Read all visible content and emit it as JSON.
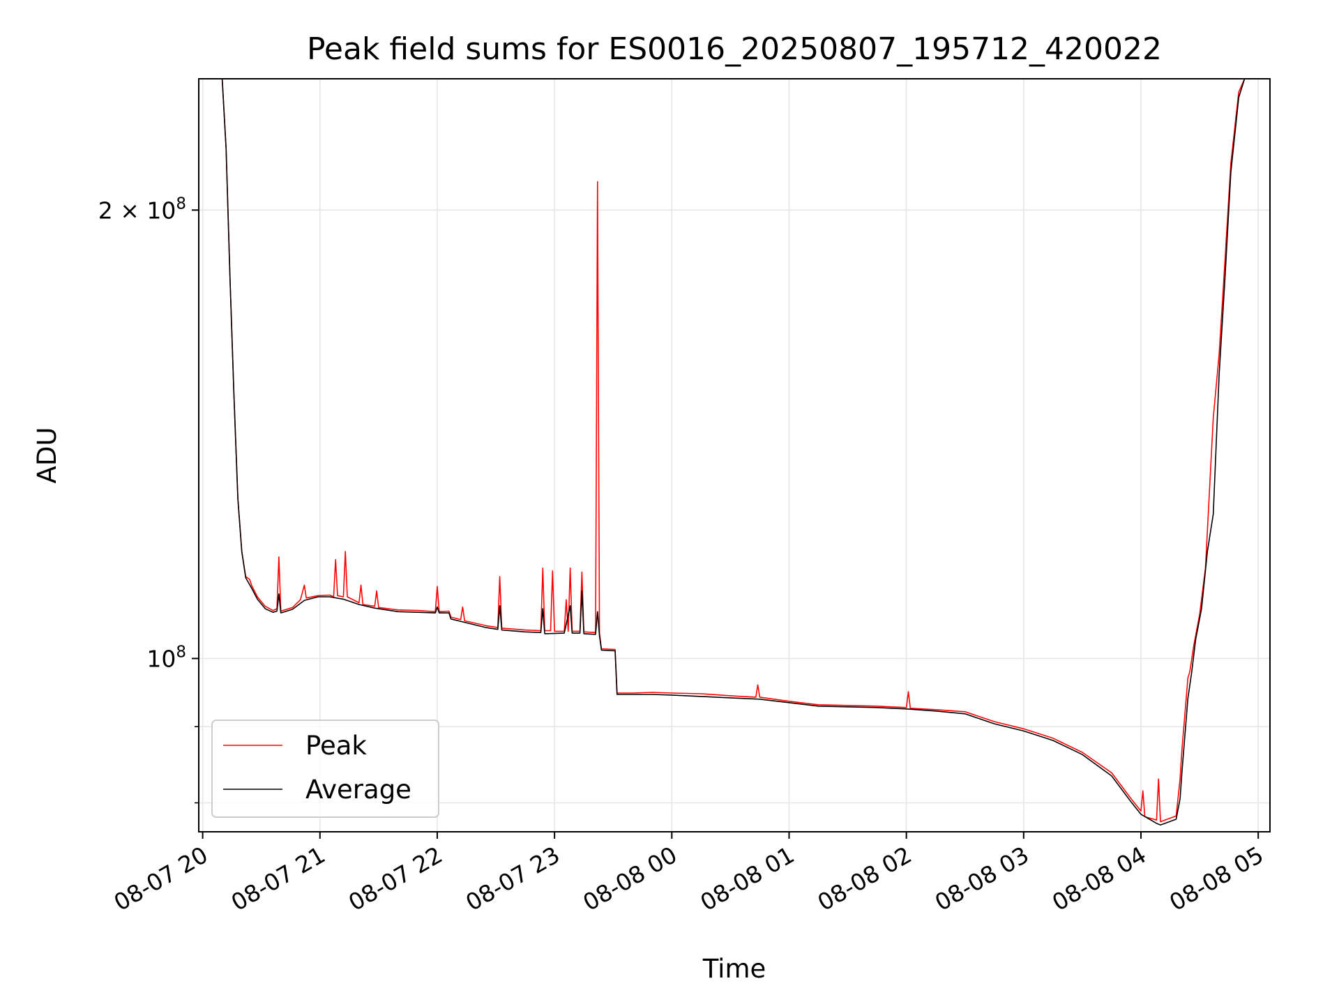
{
  "chart_data": {
    "type": "line",
    "title": "Peak field sums for ES0016_20250807_195712_420022",
    "xlabel": "Time",
    "ylabel": "ADU",
    "yscale": "log",
    "x_unit": "hours",
    "xlim": [
      "08-07 19:58",
      "08-08 05:06"
    ],
    "ylim": [
      76500000,
      245000000
    ],
    "grid": true,
    "legend_position": "lower-left",
    "x_ticks": [
      {
        "label": "08-07 20",
        "value": "08-07 20:00"
      },
      {
        "label": "08-07 21",
        "value": "08-07 21:00"
      },
      {
        "label": "08-07 22",
        "value": "08-07 22:00"
      },
      {
        "label": "08-07 23",
        "value": "08-07 23:00"
      },
      {
        "label": "08-08 00",
        "value": "08-08 00:00"
      },
      {
        "label": "08-08 01",
        "value": "08-08 01:00"
      },
      {
        "label": "08-08 02",
        "value": "08-08 02:00"
      },
      {
        "label": "08-08 03",
        "value": "08-08 03:00"
      },
      {
        "label": "08-08 04",
        "value": "08-08 04:00"
      },
      {
        "label": "08-08 05",
        "value": "08-08 05:00"
      }
    ],
    "y_major_ticks": [
      {
        "label_base": "10",
        "label_exp": "8",
        "label_coef": "",
        "value": 100000000
      },
      {
        "label_base": "10",
        "label_exp": "8",
        "label_coef": "2 × ",
        "value": 200000000
      }
    ],
    "y_minor_ticks": [
      80000000,
      90000000
    ],
    "series": [
      {
        "name": "Peak",
        "color": "#ff0000",
        "points": [
          [
            "08-07 20:10",
            245000000
          ],
          [
            "08-07 20:12",
            220000000
          ],
          [
            "08-07 20:14",
            180000000
          ],
          [
            "08-07 20:16",
            150000000
          ],
          [
            "08-07 20:18",
            128000000
          ],
          [
            "08-07 20:20",
            118000000
          ],
          [
            "08-07 20:22",
            113500000
          ],
          [
            "08-07 20:24",
            113000000
          ],
          [
            "08-07 20:25",
            112000000
          ],
          [
            "08-07 20:28",
            110000000
          ],
          [
            "08-07 20:32",
            108400000
          ],
          [
            "08-07 20:36",
            107700000
          ],
          [
            "08-07 20:38",
            108000000
          ],
          [
            "08-07 20:39",
            117000000
          ],
          [
            "08-07 20:40",
            107600000
          ],
          [
            "08-07 20:46",
            108200000
          ],
          [
            "08-07 20:50",
            109500000
          ],
          [
            "08-07 20:52",
            112000000
          ],
          [
            "08-07 20:53",
            109800000
          ],
          [
            "08-07 20:59",
            110200000
          ],
          [
            "08-07 21:05",
            110300000
          ],
          [
            "08-07 21:07",
            110000000
          ],
          [
            "08-07 21:08",
            116500000
          ],
          [
            "08-07 21:09",
            110200000
          ],
          [
            "08-07 21:12",
            110000000
          ],
          [
            "08-07 21:13",
            118000000
          ],
          [
            "08-07 21:14",
            110000000
          ],
          [
            "08-07 21:20",
            109000000
          ],
          [
            "08-07 21:21",
            112000000
          ],
          [
            "08-07 21:22",
            108700000
          ],
          [
            "08-07 21:28",
            108400000
          ],
          [
            "08-07 21:29",
            111000000
          ],
          [
            "08-07 21:30",
            108200000
          ],
          [
            "08-07 21:40",
            107800000
          ],
          [
            "08-07 21:50",
            107700000
          ],
          [
            "08-07 21:59",
            107500000
          ],
          [
            "08-07 22:00",
            111800000
          ],
          [
            "08-07 22:01",
            107500000
          ],
          [
            "08-07 22:06",
            107600000
          ],
          [
            "08-07 22:07",
            106600000
          ],
          [
            "08-07 22:12",
            106200000
          ],
          [
            "08-07 22:13",
            108300000
          ],
          [
            "08-07 22:14",
            106000000
          ],
          [
            "08-07 22:25",
            105200000
          ],
          [
            "08-07 22:31",
            104900000
          ],
          [
            "08-07 22:32",
            113500000
          ],
          [
            "08-07 22:33",
            104800000
          ],
          [
            "08-07 22:45",
            104500000
          ],
          [
            "08-07 22:53",
            104400000
          ],
          [
            "08-07 22:54",
            115000000
          ],
          [
            "08-07 22:55",
            104400000
          ],
          [
            "08-07 22:58",
            104400000
          ],
          [
            "08-07 22:59",
            114500000
          ],
          [
            "08-07 23:00",
            104300000
          ],
          [
            "08-07 23:05",
            104300000
          ],
          [
            "08-07 23:06",
            109500000
          ],
          [
            "08-07 23:07",
            104300000
          ],
          [
            "08-07 23:08",
            115000000
          ],
          [
            "08-07 23:09",
            104300000
          ],
          [
            "08-07 23:13",
            104300000
          ],
          [
            "08-07 23:14",
            114300000
          ],
          [
            "08-07 23:15",
            104200000
          ],
          [
            "08-07 23:21",
            104100000
          ],
          [
            "08-07 23:22",
            209000000
          ],
          [
            "08-07 23:23",
            104000000
          ],
          [
            "08-07 23:24",
            101500000
          ],
          [
            "08-07 23:31",
            101400000
          ],
          [
            "08-07 23:32",
            94800000
          ],
          [
            "08-07 23:40",
            94800000
          ],
          [
            "08-07 23:50",
            94900000
          ],
          [
            "08-08 00:00",
            94800000
          ],
          [
            "08-08 00:15",
            94700000
          ],
          [
            "08-08 00:30",
            94400000
          ],
          [
            "08-08 00:43",
            94200000
          ],
          [
            "08-08 00:44",
            96000000
          ],
          [
            "08-08 00:45",
            94200000
          ],
          [
            "08-08 01:00",
            93600000
          ],
          [
            "08-08 01:15",
            93100000
          ],
          [
            "08-08 01:30",
            93000000
          ],
          [
            "08-08 01:45",
            92900000
          ],
          [
            "08-08 02:00",
            92700000
          ],
          [
            "08-08 02:01",
            95000000
          ],
          [
            "08-08 02:02",
            92600000
          ],
          [
            "08-08 02:15",
            92400000
          ],
          [
            "08-08 02:30",
            92100000
          ],
          [
            "08-08 02:45",
            90700000
          ],
          [
            "08-08 03:00",
            89700000
          ],
          [
            "08-08 03:15",
            88400000
          ],
          [
            "08-08 03:30",
            86500000
          ],
          [
            "08-08 03:45",
            83800000
          ],
          [
            "08-08 03:55",
            80500000
          ],
          [
            "08-08 04:00",
            79000000
          ],
          [
            "08-08 04:01",
            81500000
          ],
          [
            "08-08 04:02",
            78300000
          ],
          [
            "08-08 04:08",
            77900000
          ],
          [
            "08-08 04:09",
            83000000
          ],
          [
            "08-08 04:10",
            77700000
          ],
          [
            "08-08 04:18",
            78400000
          ],
          [
            "08-08 04:20",
            83000000
          ],
          [
            "08-08 04:21",
            87000000
          ],
          [
            "08-08 04:24",
            97000000
          ],
          [
            "08-08 04:25",
            98000000
          ],
          [
            "08-08 04:27",
            102000000
          ],
          [
            "08-08 04:30",
            107000000
          ],
          [
            "08-08 04:33",
            115000000
          ],
          [
            "08-08 04:37",
            145000000
          ],
          [
            "08-08 04:40",
            160000000
          ],
          [
            "08-08 04:43",
            185000000
          ],
          [
            "08-08 04:46",
            215000000
          ],
          [
            "08-08 04:50",
            240000000
          ],
          [
            "08-08 04:53",
            245000000
          ]
        ]
      },
      {
        "name": "Average",
        "color": "#000000",
        "points": [
          [
            "08-07 20:10",
            245000000
          ],
          [
            "08-07 20:12",
            220000000
          ],
          [
            "08-07 20:14",
            180000000
          ],
          [
            "08-07 20:16",
            150000000
          ],
          [
            "08-07 20:18",
            128000000
          ],
          [
            "08-07 20:20",
            118000000
          ],
          [
            "08-07 20:22",
            113300000
          ],
          [
            "08-07 20:25",
            111500000
          ],
          [
            "08-07 20:28",
            109600000
          ],
          [
            "08-07 20:32",
            108000000
          ],
          [
            "08-07 20:36",
            107400000
          ],
          [
            "08-07 20:38",
            107600000
          ],
          [
            "08-07 20:39",
            110500000
          ],
          [
            "08-07 20:40",
            107300000
          ],
          [
            "08-07 20:46",
            107900000
          ],
          [
            "08-07 20:52",
            109400000
          ],
          [
            "08-07 20:59",
            110000000
          ],
          [
            "08-07 21:05",
            110000000
          ],
          [
            "08-07 21:12",
            109600000
          ],
          [
            "08-07 21:20",
            108700000
          ],
          [
            "08-07 21:28",
            108100000
          ],
          [
            "08-07 21:40",
            107500000
          ],
          [
            "08-07 21:50",
            107400000
          ],
          [
            "08-07 21:59",
            107300000
          ],
          [
            "08-07 22:00",
            108300000
          ],
          [
            "08-07 22:01",
            107300000
          ],
          [
            "08-07 22:06",
            107300000
          ],
          [
            "08-07 22:07",
            106300000
          ],
          [
            "08-07 22:25",
            104900000
          ],
          [
            "08-07 22:31",
            104600000
          ],
          [
            "08-07 22:32",
            108500000
          ],
          [
            "08-07 22:33",
            104500000
          ],
          [
            "08-07 22:45",
            104200000
          ],
          [
            "08-07 22:53",
            104100000
          ],
          [
            "08-07 22:54",
            108000000
          ],
          [
            "08-07 22:55",
            103900000
          ],
          [
            "08-07 23:05",
            104000000
          ],
          [
            "08-07 23:08",
            108500000
          ],
          [
            "08-07 23:09",
            104000000
          ],
          [
            "08-07 23:13",
            104000000
          ],
          [
            "08-07 23:14",
            111000000
          ],
          [
            "08-07 23:15",
            103900000
          ],
          [
            "08-07 23:21",
            103800000
          ],
          [
            "08-07 23:22",
            107500000
          ],
          [
            "08-07 23:23",
            103600000
          ],
          [
            "08-07 23:24",
            101300000
          ],
          [
            "08-07 23:31",
            101200000
          ],
          [
            "08-07 23:32",
            94600000
          ],
          [
            "08-07 23:50",
            94600000
          ],
          [
            "08-08 00:00",
            94500000
          ],
          [
            "08-08 00:15",
            94300000
          ],
          [
            "08-08 00:30",
            94100000
          ],
          [
            "08-08 00:45",
            93900000
          ],
          [
            "08-08 01:00",
            93400000
          ],
          [
            "08-08 01:15",
            92900000
          ],
          [
            "08-08 01:30",
            92800000
          ],
          [
            "08-08 01:45",
            92700000
          ],
          [
            "08-08 02:00",
            92500000
          ],
          [
            "08-08 02:15",
            92200000
          ],
          [
            "08-08 02:30",
            91800000
          ],
          [
            "08-08 02:45",
            90400000
          ],
          [
            "08-08 03:00",
            89400000
          ],
          [
            "08-08 03:15",
            88100000
          ],
          [
            "08-08 03:30",
            86200000
          ],
          [
            "08-08 03:45",
            83400000
          ],
          [
            "08-08 03:55",
            80100000
          ],
          [
            "08-08 04:00",
            78600000
          ],
          [
            "08-08 04:08",
            77500000
          ],
          [
            "08-08 04:10",
            77300000
          ],
          [
            "08-08 04:18",
            78000000
          ],
          [
            "08-08 04:20",
            80500000
          ],
          [
            "08-08 04:21",
            84000000
          ],
          [
            "08-08 04:24",
            94000000
          ],
          [
            "08-08 04:26",
            98000000
          ],
          [
            "08-08 04:28",
            103000000
          ],
          [
            "08-08 04:31",
            108000000
          ],
          [
            "08-08 04:34",
            118000000
          ],
          [
            "08-08 04:37",
            125000000
          ],
          [
            "08-08 04:40",
            155000000
          ],
          [
            "08-08 04:43",
            180000000
          ],
          [
            "08-08 04:46",
            212000000
          ],
          [
            "08-08 04:50",
            238000000
          ],
          [
            "08-08 04:53",
            245000000
          ]
        ]
      }
    ]
  }
}
